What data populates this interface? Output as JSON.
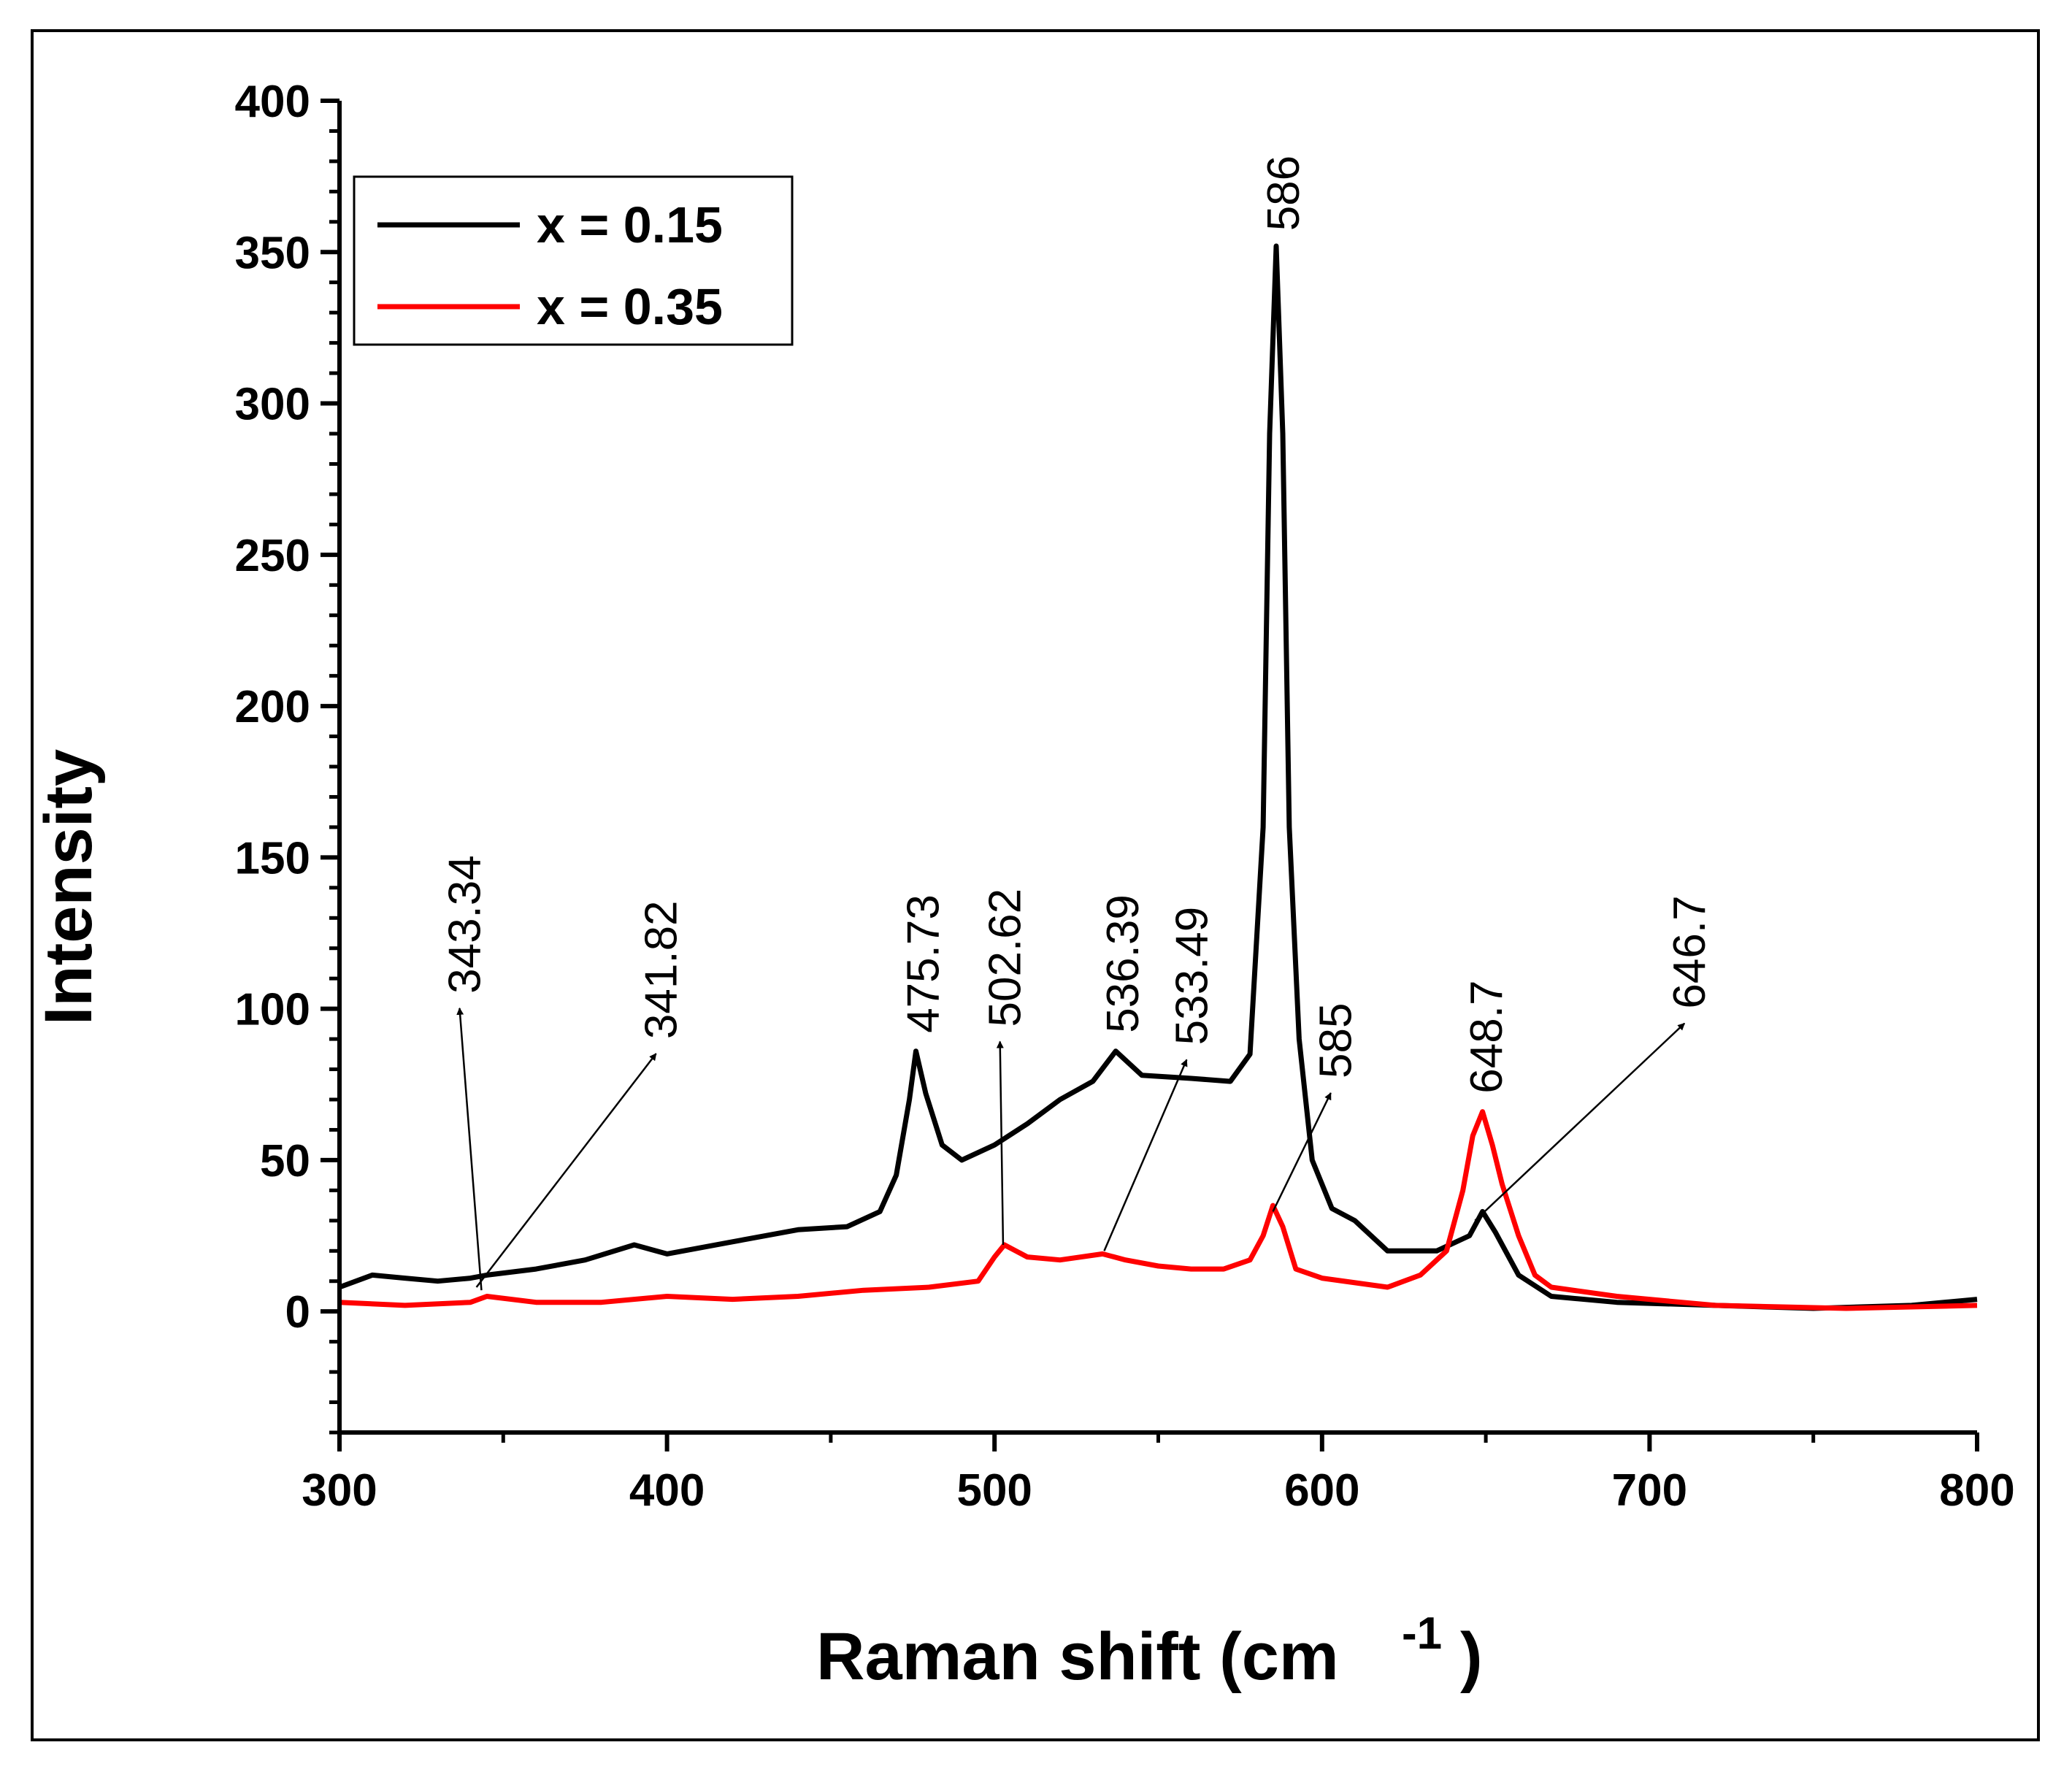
{
  "chart_data": {
    "type": "line",
    "xlabel": "Raman shift (cm",
    "xlabel_sup": "-1",
    "xlabel_close": ")",
    "ylabel": "Intensity",
    "xlim": [
      300,
      800
    ],
    "ylim": [
      -40,
      400
    ],
    "x_ticks": [
      300,
      400,
      500,
      600,
      700,
      800
    ],
    "x_tick_labels": [
      "300",
      "400",
      "500",
      "600",
      "700",
      "800"
    ],
    "y_ticks": [
      0,
      50,
      100,
      150,
      200,
      250,
      300,
      350,
      400
    ],
    "y_tick_labels": [
      "0",
      "50",
      "100",
      "150",
      "200",
      "250",
      "300",
      "350",
      "400"
    ],
    "legend_position": "top-left",
    "series": [
      {
        "name": "x = 0.15",
        "color": "#000000",
        "points": [
          [
            300,
            8
          ],
          [
            310,
            12
          ],
          [
            320,
            11
          ],
          [
            330,
            10
          ],
          [
            340,
            11
          ],
          [
            345,
            12
          ],
          [
            360,
            14
          ],
          [
            375,
            17
          ],
          [
            390,
            22
          ],
          [
            400,
            19
          ],
          [
            420,
            23
          ],
          [
            440,
            27
          ],
          [
            455,
            28
          ],
          [
            465,
            33
          ],
          [
            470,
            45
          ],
          [
            474,
            70
          ],
          [
            476,
            86
          ],
          [
            479,
            72
          ],
          [
            484,
            55
          ],
          [
            490,
            50
          ],
          [
            500,
            55
          ],
          [
            510,
            62
          ],
          [
            520,
            70
          ],
          [
            530,
            76
          ],
          [
            537,
            86
          ],
          [
            545,
            78
          ],
          [
            560,
            77
          ],
          [
            572,
            76
          ],
          [
            578,
            85
          ],
          [
            582,
            160
          ],
          [
            584,
            290
          ],
          [
            586,
            352
          ],
          [
            588,
            290
          ],
          [
            590,
            160
          ],
          [
            593,
            90
          ],
          [
            597,
            50
          ],
          [
            603,
            34
          ],
          [
            610,
            30
          ],
          [
            620,
            20
          ],
          [
            635,
            20
          ],
          [
            645,
            25
          ],
          [
            649,
            33
          ],
          [
            653,
            26
          ],
          [
            660,
            12
          ],
          [
            670,
            5
          ],
          [
            690,
            3
          ],
          [
            720,
            2
          ],
          [
            750,
            1
          ],
          [
            780,
            2
          ],
          [
            800,
            4
          ]
        ]
      },
      {
        "name": "x = 0.35",
        "color": "#ff0000",
        "points": [
          [
            300,
            3
          ],
          [
            320,
            2
          ],
          [
            340,
            3
          ],
          [
            345,
            5
          ],
          [
            360,
            3
          ],
          [
            380,
            3
          ],
          [
            400,
            5
          ],
          [
            420,
            4
          ],
          [
            440,
            5
          ],
          [
            460,
            7
          ],
          [
            480,
            8
          ],
          [
            495,
            10
          ],
          [
            500,
            18
          ],
          [
            503,
            22
          ],
          [
            510,
            18
          ],
          [
            520,
            17
          ],
          [
            533,
            19
          ],
          [
            540,
            17
          ],
          [
            550,
            15
          ],
          [
            560,
            14
          ],
          [
            570,
            14
          ],
          [
            578,
            17
          ],
          [
            582,
            25
          ],
          [
            585,
            35
          ],
          [
            588,
            28
          ],
          [
            592,
            14
          ],
          [
            600,
            11
          ],
          [
            620,
            8
          ],
          [
            630,
            12
          ],
          [
            638,
            20
          ],
          [
            643,
            40
          ],
          [
            646,
            58
          ],
          [
            649,
            66
          ],
          [
            652,
            55
          ],
          [
            655,
            42
          ],
          [
            660,
            25
          ],
          [
            665,
            12
          ],
          [
            670,
            8
          ],
          [
            690,
            5
          ],
          [
            720,
            2
          ],
          [
            760,
            1
          ],
          [
            800,
            2
          ]
        ]
      }
    ],
    "annotations": [
      {
        "label": "343.34",
        "peak": [
          343.34,
          7
        ],
        "text_x": 338,
        "text_y": 105
      },
      {
        "label": "341.82",
        "peak": [
          341.82,
          8
        ],
        "text_x": 398,
        "text_y": 90
      },
      {
        "label": "475.73",
        "peak": [
          475.73,
          87
        ],
        "text_x": 478,
        "text_y": 92
      },
      {
        "label": "502.62",
        "peak": [
          502.62,
          22
        ],
        "text_x": 503,
        "text_y": 94
      },
      {
        "label": "536.39",
        "peak": [
          536.39,
          87
        ],
        "text_x": 539,
        "text_y": 92
      },
      {
        "label": "533.49",
        "peak": [
          533.49,
          20
        ],
        "text_x": 560,
        "text_y": 88
      },
      {
        "label": "586",
        "peak": [
          586,
          352
        ],
        "text_x": 588,
        "text_y": 357
      },
      {
        "label": "585",
        "peak": [
          585,
          33
        ],
        "text_x": 604,
        "text_y": 77
      },
      {
        "label": "648.7",
        "peak": [
          648.7,
          66
        ],
        "text_x": 650,
        "text_y": 72
      },
      {
        "label": "646.7",
        "peak": [
          646.7,
          30
        ],
        "text_x": 712,
        "text_y": 100
      }
    ]
  }
}
